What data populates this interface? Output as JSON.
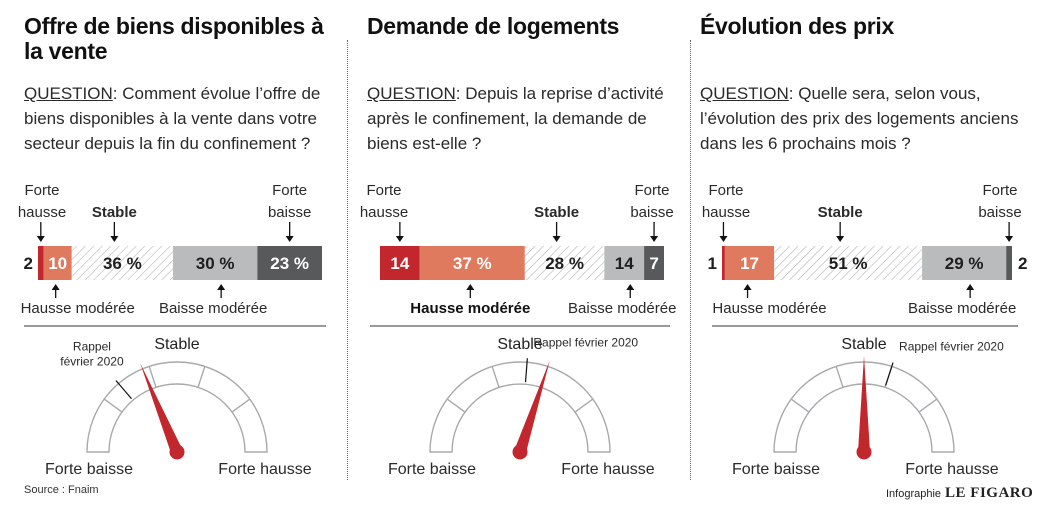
{
  "question_label": "QUESTION",
  "labels": {
    "forte_hausse_1": "Forte",
    "forte_hausse_2": "hausse",
    "forte_baisse_1": "Forte",
    "forte_baisse_2": "baisse",
    "stable": "Stable",
    "hausse_moderee": "Hausse modérée",
    "baisse_moderee": "Baisse modérée",
    "gauge_left": "Forte baisse",
    "gauge_right": "Forte hausse",
    "gauge_top": "Stable"
  },
  "colors": {
    "forte_hausse": "#c1272d",
    "hausse_moderee": "#e07a5f",
    "baisse_moderee": "#b9bbbc",
    "forte_baisse": "#58595b",
    "needle": "#c1272d"
  },
  "chart_data": [
    {
      "type": "bar",
      "title": "Offre de biens disponibles à la vente",
      "question": ": Comment évolue l’offre de biens disponibles à la vente dans votre secteur depuis la fin du confinement ?",
      "categories": [
        "Forte hausse",
        "Hausse modérée",
        "Stable",
        "Baisse modérée",
        "Forte baisse"
      ],
      "values": [
        2,
        10,
        36,
        30,
        23
      ],
      "labels": [
        "2",
        "10",
        "36 %",
        "30 %",
        "23 %"
      ],
      "gauge": {
        "needle": -0.25,
        "rappel": -0.45,
        "rappel_label": [
          "Rappel",
          "février 2020"
        ]
      }
    },
    {
      "type": "bar",
      "title": "Demande de logements",
      "question": ": Depuis la reprise d’activité après le confinement, la demande de biens est-elle ?",
      "categories": [
        "Forte hausse",
        "Hausse modérée",
        "Stable",
        "Baisse modérée",
        "Forte baisse"
      ],
      "values": [
        14,
        37,
        28,
        14,
        7
      ],
      "labels": [
        "14",
        "37 %",
        "28 %",
        "14",
        "7"
      ],
      "gauge": {
        "needle": 0.2,
        "rappel": 0.05,
        "rappel_label": [
          "Rappel février 2020"
        ]
      }
    },
    {
      "type": "bar",
      "title": "Évolution des prix",
      "question": ": Quelle sera, selon vous, l’évolution des prix des logements anciens dans les 6 prochains mois ?",
      "categories": [
        "Forte hausse",
        "Hausse modérée",
        "Stable",
        "Baisse modérée",
        "Forte baisse"
      ],
      "values": [
        1,
        17,
        51,
        29,
        2
      ],
      "labels": [
        "1",
        "17",
        "51 %",
        "29 %",
        "2"
      ],
      "gauge": {
        "needle": 0.0,
        "rappel": 0.2,
        "rappel_label": [
          "Rappel février 2020"
        ]
      }
    }
  ],
  "footer": {
    "source": "Source : Fnaim",
    "credit": "Infographie",
    "brand": "LE FIGARO"
  }
}
